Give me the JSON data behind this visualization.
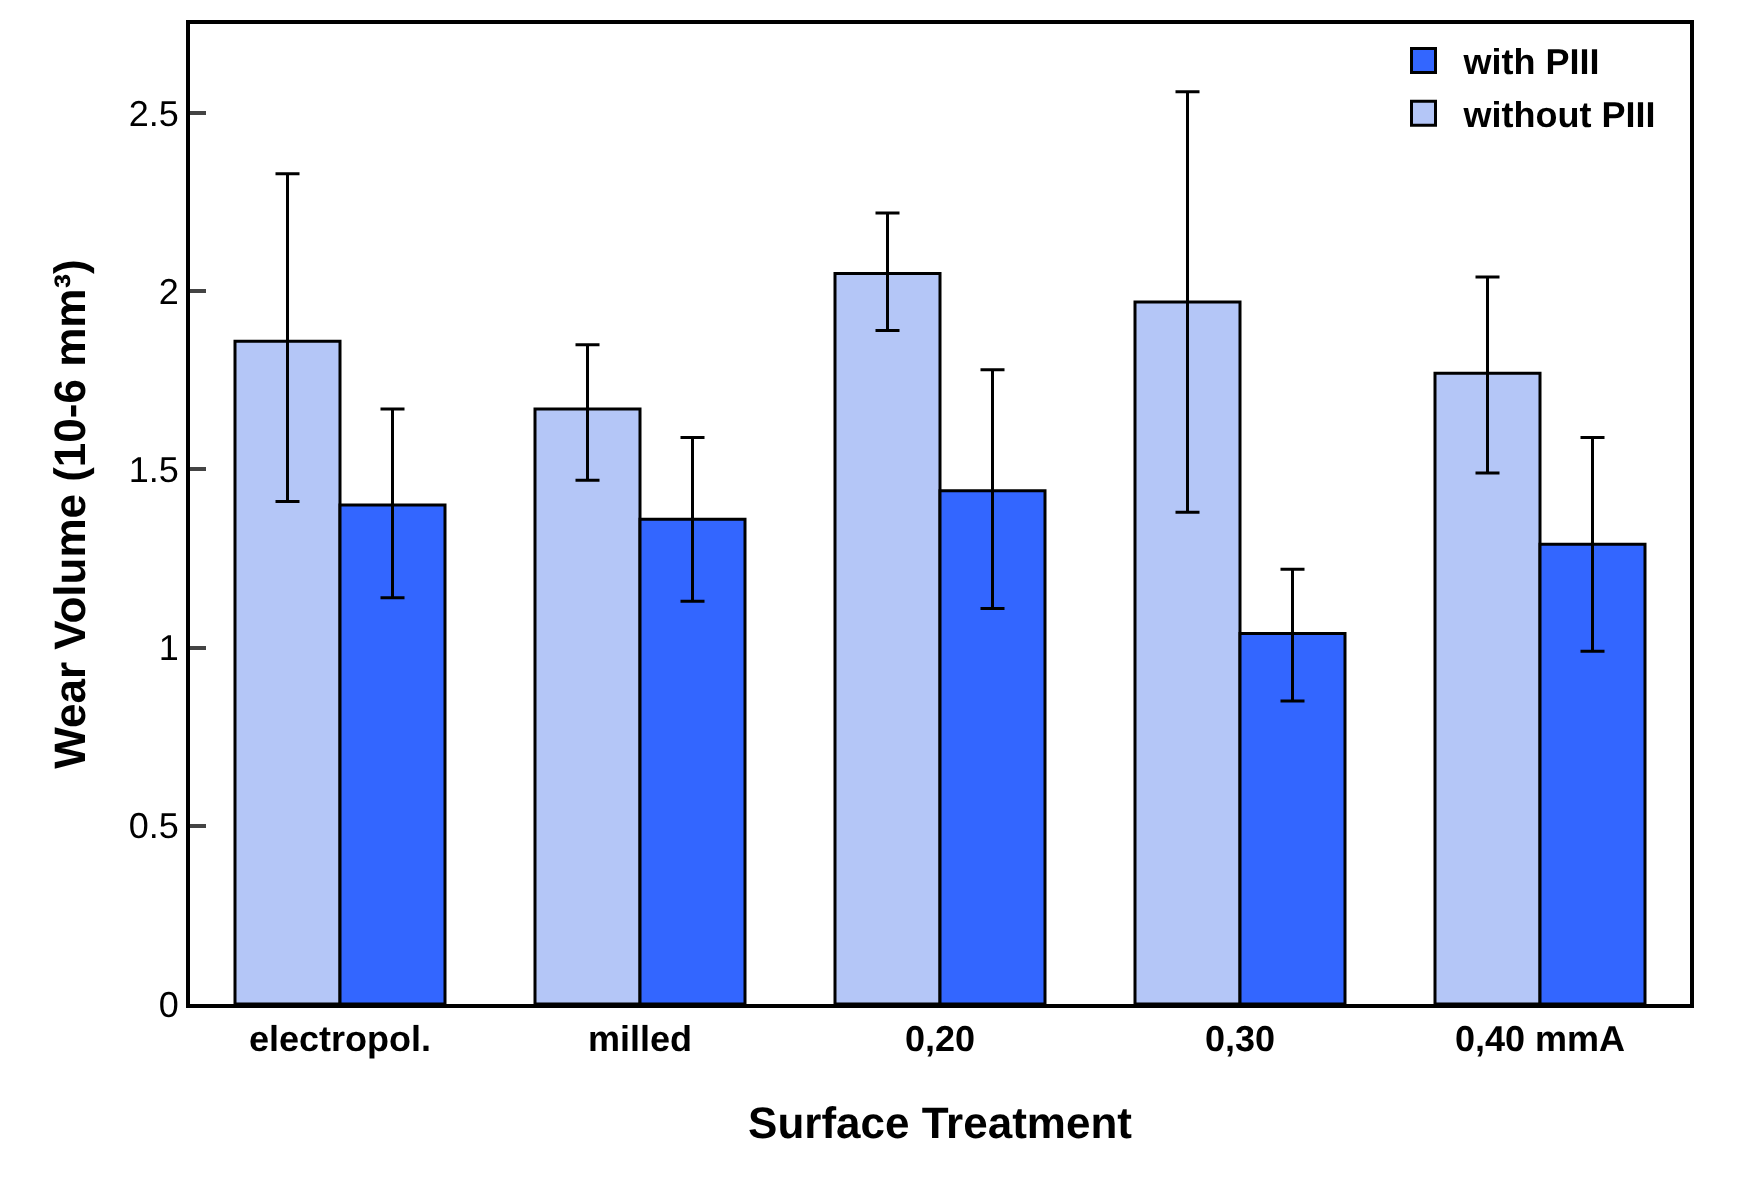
{
  "chart_data": {
    "type": "bar",
    "xlabel": "Surface Treatment",
    "ylabel": "Wear Volume (10-6 mm³)",
    "categories": [
      "electropol.",
      "milled",
      "0,20",
      "0,30",
      "0,40 mmA"
    ],
    "series": [
      {
        "name": "without PIII",
        "color": "#b4c6f7",
        "values": [
          1.86,
          1.67,
          2.05,
          1.97,
          1.77
        ],
        "errors": [
          [
            1.41,
            2.33
          ],
          [
            1.47,
            1.85
          ],
          [
            1.89,
            2.22
          ],
          [
            1.38,
            2.56
          ],
          [
            1.49,
            2.04
          ]
        ]
      },
      {
        "name": "with PIII",
        "color": "#3366ff",
        "values": [
          1.4,
          1.36,
          1.44,
          1.04,
          1.29
        ],
        "errors": [
          [
            1.14,
            1.67
          ],
          [
            1.13,
            1.59
          ],
          [
            1.11,
            1.78
          ],
          [
            0.85,
            1.22
          ],
          [
            0.99,
            1.59
          ]
        ]
      }
    ],
    "ylim": [
      0,
      2.75
    ],
    "yticks": [
      0,
      0.5,
      1,
      1.5,
      2,
      2.5
    ],
    "legend": "top right"
  }
}
